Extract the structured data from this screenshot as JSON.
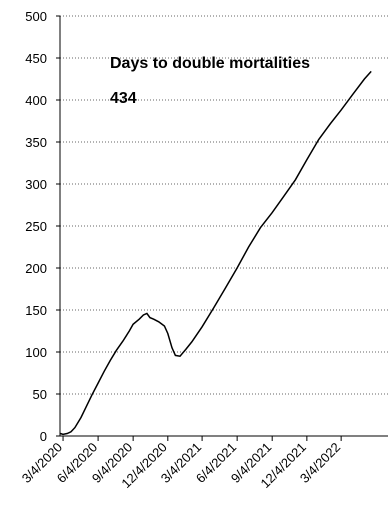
{
  "chart_data": {
    "type": "line",
    "title": "",
    "xlabel": "",
    "ylabel": "",
    "ylim": [
      0,
      500
    ],
    "yticks": [
      0,
      50,
      100,
      150,
      200,
      250,
      300,
      350,
      400,
      450,
      500
    ],
    "xlim": [
      "2020-02-25",
      "2022-07-05"
    ],
    "xticks": [
      {
        "date": "2020-03-04",
        "label": "3/4/2020"
      },
      {
        "date": "2020-06-04",
        "label": "6/4/2020"
      },
      {
        "date": "2020-09-04",
        "label": "9/4/2020"
      },
      {
        "date": "2020-12-04",
        "label": "12/4/2020"
      },
      {
        "date": "2021-03-04",
        "label": "3/4/2021"
      },
      {
        "date": "2021-06-04",
        "label": "6/4/2021"
      },
      {
        "date": "2021-09-04",
        "label": "9/4/2021"
      },
      {
        "date": "2021-12-04",
        "label": "12/4/2021"
      },
      {
        "date": "2022-03-04",
        "label": "3/4/2022"
      }
    ],
    "grid": "horizontal dotted",
    "annotations": [
      {
        "text": "Days to double mortalities",
        "position": "upper-left"
      },
      {
        "text": "434",
        "position": "upper-left"
      }
    ],
    "series": [
      {
        "values": [
          [
            "2020-02-26",
            3
          ],
          [
            "2020-03-04",
            2
          ],
          [
            "2020-03-15",
            3
          ],
          [
            "2020-03-25",
            5
          ],
          [
            "2020-04-04",
            10
          ],
          [
            "2020-04-20",
            22
          ],
          [
            "2020-05-04",
            35
          ],
          [
            "2020-05-19",
            49
          ],
          [
            "2020-06-04",
            63
          ],
          [
            "2020-06-20",
            77
          ],
          [
            "2020-07-06",
            90
          ],
          [
            "2020-07-22",
            102
          ],
          [
            "2020-08-08",
            113
          ],
          [
            "2020-08-25",
            125
          ],
          [
            "2020-09-04",
            133
          ],
          [
            "2020-09-20",
            139
          ],
          [
            "2020-10-01",
            144
          ],
          [
            "2020-10-10",
            146
          ],
          [
            "2020-10-18",
            141
          ],
          [
            "2020-10-28",
            139
          ],
          [
            "2020-11-10",
            136
          ],
          [
            "2020-11-25",
            131
          ],
          [
            "2020-12-04",
            122
          ],
          [
            "2020-12-15",
            105
          ],
          [
            "2020-12-24",
            96
          ],
          [
            "2021-01-05",
            95
          ],
          [
            "2021-01-20",
            103
          ],
          [
            "2021-02-05",
            112
          ],
          [
            "2021-03-04",
            130
          ],
          [
            "2021-04-04",
            153
          ],
          [
            "2021-05-04",
            176
          ],
          [
            "2021-06-04",
            200
          ],
          [
            "2021-07-04",
            225
          ],
          [
            "2021-08-04",
            248
          ],
          [
            "2021-09-04",
            266
          ],
          [
            "2021-10-04",
            285
          ],
          [
            "2021-11-04",
            305
          ],
          [
            "2021-12-04",
            329
          ],
          [
            "2022-01-04",
            353
          ],
          [
            "2022-02-04",
            372
          ],
          [
            "2022-03-04",
            388
          ],
          [
            "2022-04-04",
            407
          ],
          [
            "2022-05-04",
            425
          ],
          [
            "2022-05-22",
            434
          ]
        ]
      }
    ]
  }
}
